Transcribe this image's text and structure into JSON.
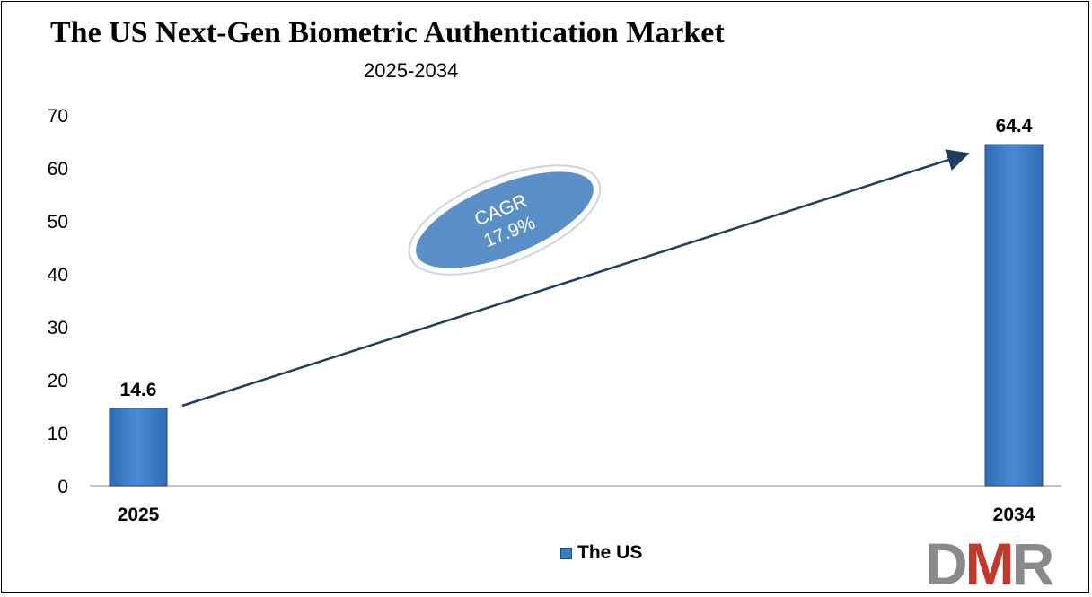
{
  "chart_data": {
    "type": "bar",
    "title": "The US Next-Gen Biometric Authentication Market",
    "subtitle": "2025-2034",
    "categories": [
      "2025",
      "2034"
    ],
    "series": [
      {
        "name": "The US",
        "values": [
          14.6,
          64.4
        ],
        "color": "#3a7bc8"
      }
    ],
    "data_labels": [
      "14.6",
      "64.4"
    ],
    "ylim": [
      0,
      70
    ],
    "yticks": [
      0,
      10,
      20,
      30,
      40,
      50,
      60,
      70
    ],
    "grid": false,
    "legend": "bottom-center",
    "annotation": {
      "line1": "CAGR",
      "line2": "17.9%"
    }
  },
  "logo": {
    "d": "D",
    "m": "M",
    "r": "R"
  }
}
